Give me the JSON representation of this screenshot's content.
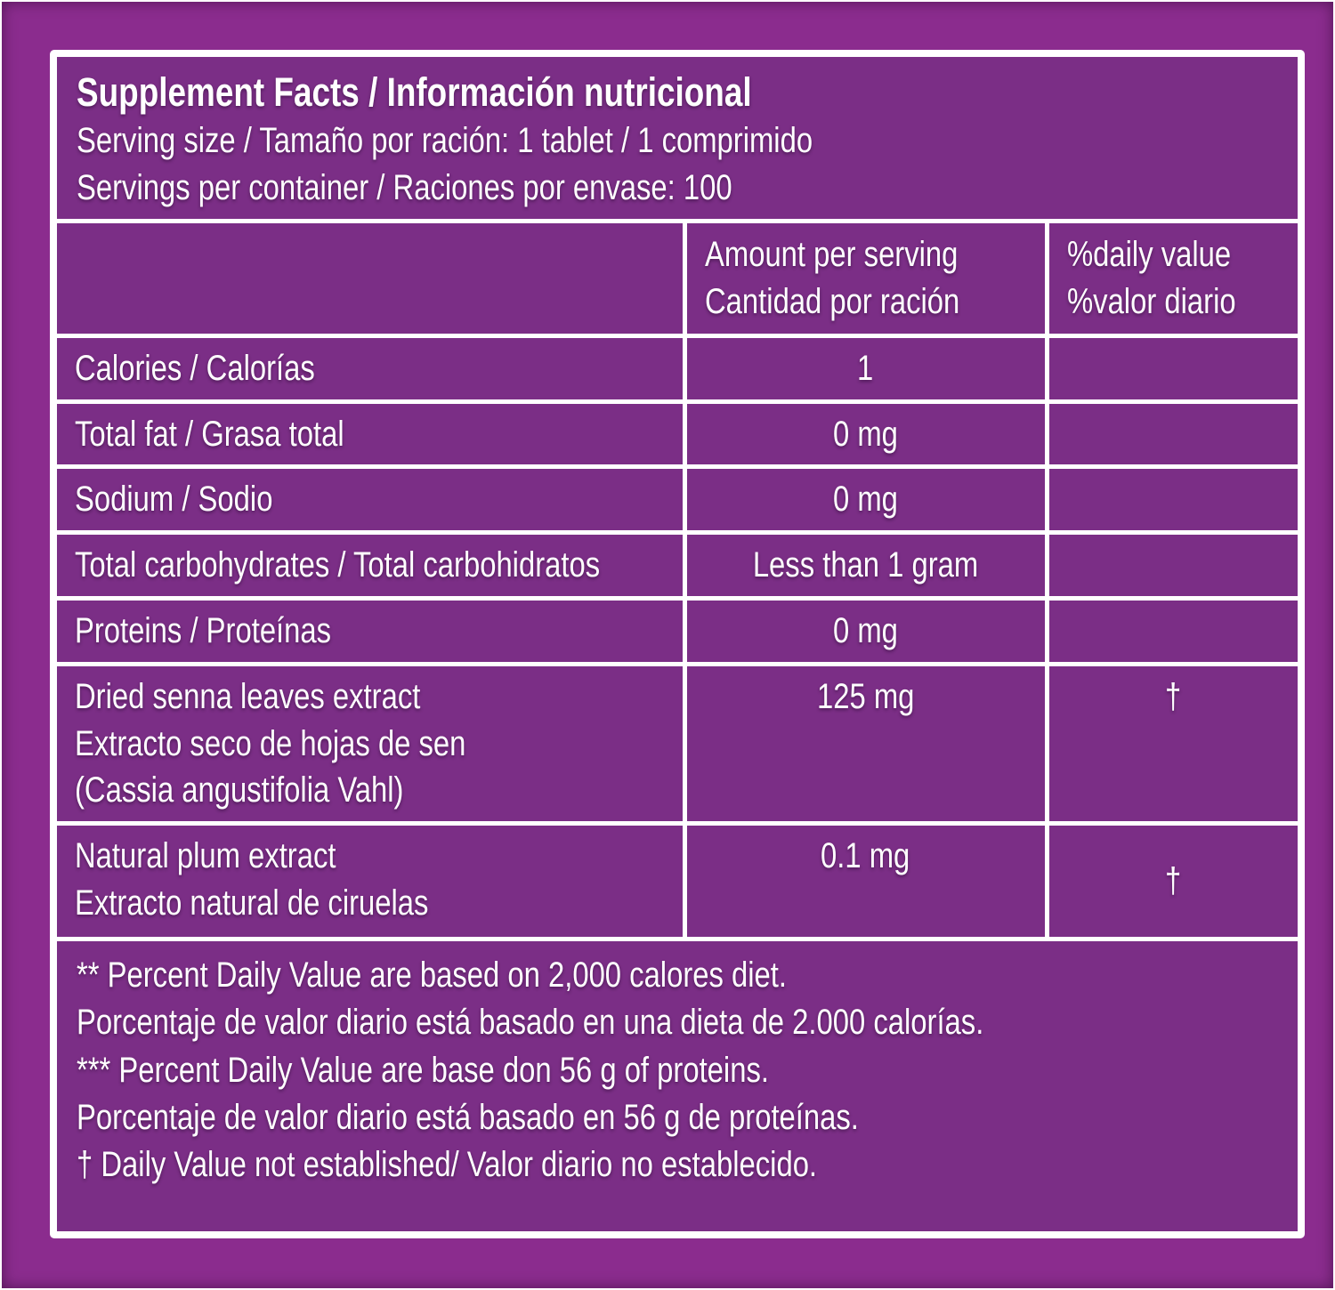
{
  "label": {
    "title": "Supplement Facts / Información nutricional",
    "serving_size": "Serving size / Tamaño por ración: 1 tablet / 1 comprimido",
    "servings_per_container": "Servings per container / Raciones por envase: 100"
  },
  "table": {
    "col_headers": {
      "amount": "Amount per serving\nCantidad por ración",
      "daily_value": "%daily value\n%valor diario"
    },
    "rows": [
      {
        "name": "Calories / Calorías",
        "amount": "1",
        "daily_value": ""
      },
      {
        "name": "Total fat / Grasa total",
        "amount": "0 mg",
        "daily_value": ""
      },
      {
        "name": "Sodium / Sodio",
        "amount": "0 mg",
        "daily_value": ""
      },
      {
        "name": "Total carbohydrates / Total carbohidratos",
        "amount": "Less than 1 gram",
        "daily_value": ""
      },
      {
        "name": "Proteins / Proteínas",
        "amount": "0 mg",
        "daily_value": ""
      },
      {
        "name": "Dried senna leaves extract\nExtracto seco de hojas de sen\n(Cassia angustifolia Vahl)",
        "amount": "125 mg",
        "daily_value": "†"
      },
      {
        "name": "Natural plum extract\nExtracto natural de ciruelas",
        "amount": "0.1 mg",
        "daily_value": "†"
      }
    ]
  },
  "footnotes": "** Percent Daily Value are based on 2,000 calores diet.\nPorcentaje de valor diario está basado en una dieta de 2.000 calorías.\n*** Percent Daily Value are base don 56 g of proteins.\nPorcentaje de valor diario está basado en 56 g de proteínas.\n† Daily Value not established/ Valor diario no establecido.",
  "colors": {
    "outer_background": "#8b2c8e",
    "panel_background": "#7b2e86",
    "border": "#ffffff",
    "text": "#ffffff"
  }
}
